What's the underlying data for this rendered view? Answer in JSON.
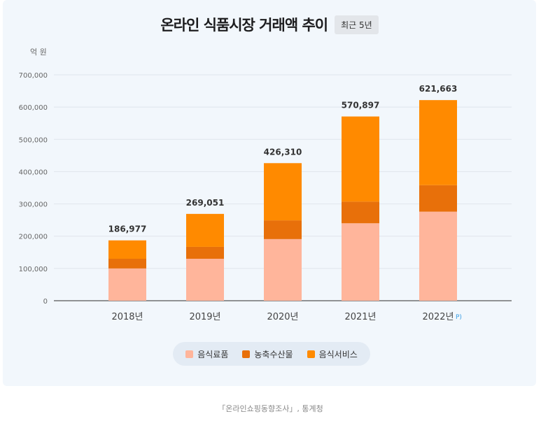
{
  "chart_data": {
    "type": "bar",
    "stacked": true,
    "title": "온라인 식품시장 거래액 추이",
    "badge": "최근 5년",
    "ylabel": "억 원",
    "ylim": [
      0,
      700000
    ],
    "yticks": [
      "0",
      "100,000",
      "200,000",
      "300,000",
      "400,000",
      "500,000",
      "600,000",
      "700,000"
    ],
    "ytick_values": [
      0,
      100000,
      200000,
      300000,
      400000,
      500000,
      600000,
      700000
    ],
    "categories": [
      "2018년",
      "2019년",
      "2020년",
      "2021년",
      "2022년"
    ],
    "category_note": {
      "index": 4,
      "text": "P)"
    },
    "series": [
      {
        "name": "음식료품",
        "color": "#ffb59b",
        "values": [
          100000,
          130000,
          191000,
          240000,
          276000
        ]
      },
      {
        "name": "농축수산물",
        "color": "#e8700a",
        "values": [
          30000,
          37000,
          58000,
          67000,
          82000
        ]
      },
      {
        "name": "음식서비스",
        "color": "#ff8a00",
        "values": [
          56977,
          102051,
          177310,
          263897,
          263663
        ]
      }
    ],
    "totals": [
      186977,
      269051,
      426310,
      570897,
      621663
    ],
    "total_labels": [
      "186,977",
      "269,051",
      "426,310",
      "570,897",
      "621,663"
    ],
    "legend": [
      "음식료품",
      "농축수산물",
      "음식서비스"
    ]
  },
  "source": "「온라인쇼핑동향조사」, 통계청"
}
